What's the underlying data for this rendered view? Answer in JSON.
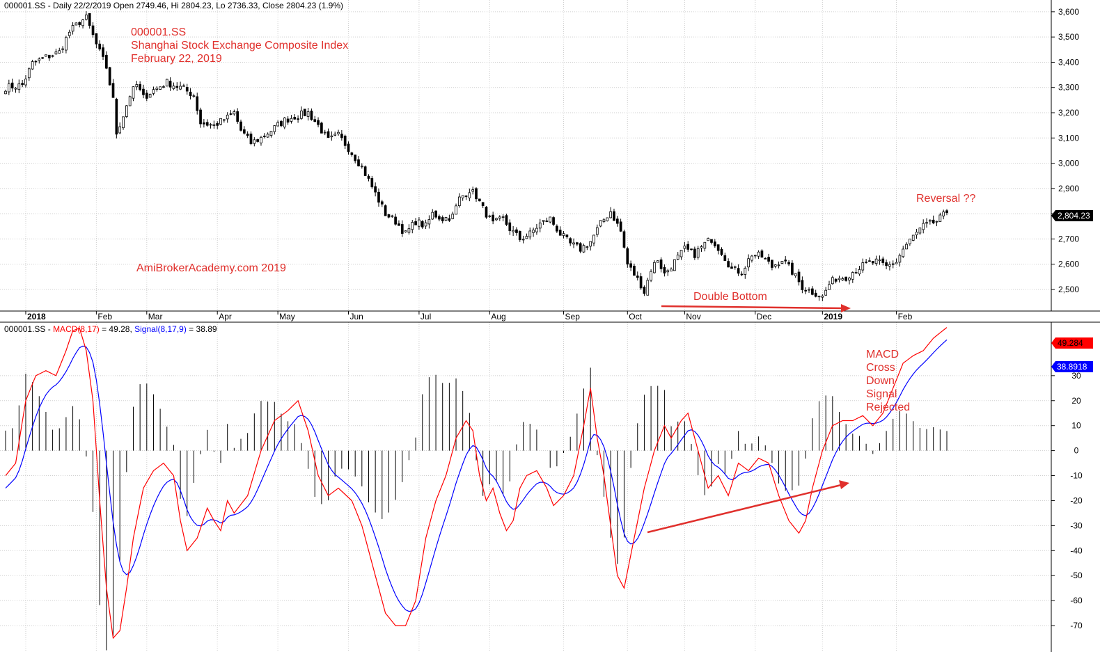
{
  "chart_data": [
    {
      "type": "candlestick",
      "header": {
        "prefix": "000001.SS - Daily 22/2/2019 Open 2749.46, Hi 2804.23, Lo 2736.33, Close 2804.23 (1.9%)"
      },
      "title_lines": [
        "000001.SS",
        "Shanghai Stock Exchange Composite Index",
        "February 22, 2019"
      ],
      "watermark": "AmiBrokerAcademy.com   2019",
      "annotations": {
        "double_bottom": "Double Bottom",
        "reversal": "Reversal ??"
      },
      "last_price_label": "2,804.23",
      "ylim": [
        2420,
        3630
      ],
      "yticks": [
        2500,
        2600,
        2700,
        2800,
        2900,
        3000,
        3100,
        3200,
        3300,
        3400,
        3500,
        3600
      ],
      "ytick_labels": [
        "2,500",
        "2,600",
        "2,700",
        "2,800",
        "2,900",
        "3,000",
        "3,100",
        "3,200",
        "3,300",
        "3,400",
        "3,500",
        "3,600"
      ],
      "months": [
        {
          "label": "2018",
          "bold": true,
          "i": 6
        },
        {
          "label": "Feb",
          "bold": false,
          "i": 27
        },
        {
          "label": "Mar",
          "bold": false,
          "i": 42
        },
        {
          "label": "Apr",
          "bold": false,
          "i": 63
        },
        {
          "label": "May",
          "bold": false,
          "i": 81
        },
        {
          "label": "Jun",
          "bold": false,
          "i": 102
        },
        {
          "label": "Jul",
          "bold": false,
          "i": 123
        },
        {
          "label": "Aug",
          "bold": false,
          "i": 144
        },
        {
          "label": "Sep",
          "bold": false,
          "i": 166
        },
        {
          "label": "Oct",
          "bold": false,
          "i": 185
        },
        {
          "label": "Nov",
          "bold": false,
          "i": 202
        },
        {
          "label": "Dec",
          "bold": false,
          "i": 223
        },
        {
          "label": "2019",
          "bold": true,
          "i": 243
        },
        {
          "label": "Feb",
          "bold": false,
          "i": 265
        }
      ],
      "n_bars": 281,
      "close_anchors": [
        [
          0,
          3300
        ],
        [
          5,
          3310
        ],
        [
          8,
          3395
        ],
        [
          12,
          3420
        ],
        [
          16,
          3440
        ],
        [
          19,
          3520
        ],
        [
          22,
          3560
        ],
        [
          24,
          3575
        ],
        [
          27,
          3470
        ],
        [
          30,
          3380
        ],
        [
          32,
          3250
        ],
        [
          33,
          3120
        ],
        [
          35,
          3190
        ],
        [
          37,
          3270
        ],
        [
          39,
          3310
        ],
        [
          41,
          3260
        ],
        [
          44,
          3290
        ],
        [
          48,
          3320
        ],
        [
          52,
          3300
        ],
        [
          56,
          3270
        ],
        [
          58,
          3160
        ],
        [
          62,
          3150
        ],
        [
          66,
          3180
        ],
        [
          68,
          3200
        ],
        [
          70,
          3130
        ],
        [
          73,
          3080
        ],
        [
          76,
          3100
        ],
        [
          80,
          3140
        ],
        [
          83,
          3170
        ],
        [
          86,
          3185
        ],
        [
          90,
          3200
        ],
        [
          93,
          3150
        ],
        [
          96,
          3090
        ],
        [
          99,
          3110
        ],
        [
          102,
          3060
        ],
        [
          106,
          2985
        ],
        [
          110,
          2880
        ],
        [
          113,
          2800
        ],
        [
          116,
          2770
        ],
        [
          119,
          2720
        ],
        [
          122,
          2770
        ],
        [
          125,
          2750
        ],
        [
          127,
          2800
        ],
        [
          130,
          2780
        ],
        [
          133,
          2790
        ],
        [
          135,
          2860
        ],
        [
          138,
          2895
        ],
        [
          140,
          2870
        ],
        [
          142,
          2820
        ],
        [
          145,
          2760
        ],
        [
          148,
          2780
        ],
        [
          150,
          2740
        ],
        [
          153,
          2700
        ],
        [
          156,
          2720
        ],
        [
          159,
          2760
        ],
        [
          162,
          2780
        ],
        [
          165,
          2720
        ],
        [
          168,
          2680
        ],
        [
          171,
          2660
        ],
        [
          174,
          2690
        ],
        [
          177,
          2760
        ],
        [
          180,
          2810
        ],
        [
          183,
          2730
        ],
        [
          185,
          2600
        ],
        [
          187,
          2560
        ],
        [
          189,
          2520
        ],
        [
          190,
          2490
        ],
        [
          192,
          2580
        ],
        [
          194,
          2620
        ],
        [
          196,
          2560
        ],
        [
          199,
          2610
        ],
        [
          202,
          2660
        ],
        [
          205,
          2640
        ],
        [
          208,
          2680
        ],
        [
          210,
          2700
        ],
        [
          213,
          2650
        ],
        [
          216,
          2580
        ],
        [
          219,
          2570
        ],
        [
          222,
          2640
        ],
        [
          225,
          2630
        ],
        [
          228,
          2590
        ],
        [
          231,
          2620
        ],
        [
          234,
          2570
        ],
        [
          237,
          2510
        ],
        [
          240,
          2490
        ],
        [
          242,
          2480
        ],
        [
          243,
          2470
        ],
        [
          245,
          2520
        ],
        [
          247,
          2545
        ],
        [
          250,
          2550
        ],
        [
          253,
          2580
        ],
        [
          256,
          2600
        ],
        [
          259,
          2610
        ],
        [
          262,
          2590
        ],
        [
          265,
          2610
        ],
        [
          267,
          2660
        ],
        [
          270,
          2710
        ],
        [
          273,
          2750
        ],
        [
          277,
          2770
        ],
        [
          280,
          2804
        ]
      ],
      "candle_seed": 7
    },
    {
      "type": "line+bar",
      "header": {
        "prefix": "000001.SS - ",
        "macd_label": "MACD(8,17)",
        "macd_value_text": " = 49.28, ",
        "signal_label": "Signal(8,17,9)",
        "signal_value_text": " = 38.89"
      },
      "series": [
        {
          "name": "MACD(8,17)",
          "color": "#ff0000",
          "last_label": "49.284"
        },
        {
          "name": "Signal(8,17,9)",
          "color": "#0000ff",
          "last_label": "38.8918"
        },
        {
          "name": "histogram",
          "color": "#000000"
        }
      ],
      "annotation_lines": [
        "MACD",
        "Cross",
        "Down",
        "Signal",
        "Rejected"
      ],
      "ylim": [
        -80,
        50
      ],
      "yticks": [
        -70,
        -60,
        -50,
        -40,
        -30,
        -20,
        -10,
        0,
        10,
        20,
        30
      ],
      "ytick_labels": [
        "-70",
        "-60",
        "-50",
        "-40",
        "-30",
        "-20",
        "-10",
        "0",
        "10",
        "20",
        "30"
      ],
      "macd_anchors": [
        [
          0,
          -10
        ],
        [
          3,
          -5
        ],
        [
          6,
          20
        ],
        [
          9,
          30
        ],
        [
          12,
          32
        ],
        [
          15,
          30
        ],
        [
          18,
          40
        ],
        [
          20,
          48
        ],
        [
          22,
          49
        ],
        [
          24,
          40
        ],
        [
          26,
          20
        ],
        [
          28,
          -20
        ],
        [
          30,
          -55
        ],
        [
          32,
          -75
        ],
        [
          34,
          -72
        ],
        [
          36,
          -55
        ],
        [
          38,
          -35
        ],
        [
          41,
          -15
        ],
        [
          44,
          -8
        ],
        [
          47,
          -5
        ],
        [
          50,
          -10
        ],
        [
          52,
          -28
        ],
        [
          54,
          -40
        ],
        [
          57,
          -35
        ],
        [
          60,
          -23
        ],
        [
          62,
          -28
        ],
        [
          64,
          -32
        ],
        [
          66,
          -20
        ],
        [
          68,
          -25
        ],
        [
          72,
          -18
        ],
        [
          76,
          0
        ],
        [
          80,
          12
        ],
        [
          84,
          16
        ],
        [
          87,
          20
        ],
        [
          90,
          8
        ],
        [
          93,
          -10
        ],
        [
          96,
          -18
        ],
        [
          99,
          -15
        ],
        [
          103,
          -20
        ],
        [
          106,
          -30
        ],
        [
          110,
          -50
        ],
        [
          113,
          -65
        ],
        [
          116,
          -70
        ],
        [
          119,
          -70
        ],
        [
          122,
          -60
        ],
        [
          125,
          -35
        ],
        [
          128,
          -20
        ],
        [
          131,
          -10
        ],
        [
          134,
          5
        ],
        [
          137,
          12
        ],
        [
          139,
          8
        ],
        [
          141,
          -10
        ],
        [
          143,
          -20
        ],
        [
          145,
          -15
        ],
        [
          147,
          -25
        ],
        [
          149,
          -32
        ],
        [
          151,
          -28
        ],
        [
          153,
          -15
        ],
        [
          155,
          -10
        ],
        [
          158,
          -8
        ],
        [
          161,
          -15
        ],
        [
          163,
          -22
        ],
        [
          166,
          -18
        ],
        [
          169,
          -10
        ],
        [
          172,
          10
        ],
        [
          174,
          25
        ],
        [
          176,
          5
        ],
        [
          178,
          -10
        ],
        [
          180,
          -30
        ],
        [
          182,
          -50
        ],
        [
          184,
          -55
        ],
        [
          187,
          -35
        ],
        [
          190,
          -15
        ],
        [
          193,
          0
        ],
        [
          196,
          10
        ],
        [
          198,
          5
        ],
        [
          201,
          12
        ],
        [
          203,
          15
        ],
        [
          205,
          5
        ],
        [
          207,
          -5
        ],
        [
          209,
          -15
        ],
        [
          212,
          -10
        ],
        [
          215,
          -18
        ],
        [
          218,
          -5
        ],
        [
          221,
          -8
        ],
        [
          224,
          -3
        ],
        [
          227,
          -5
        ],
        [
          230,
          -18
        ],
        [
          233,
          -28
        ],
        [
          236,
          -33
        ],
        [
          238,
          -28
        ],
        [
          240,
          -15
        ],
        [
          243,
          0
        ],
        [
          246,
          10
        ],
        [
          249,
          12
        ],
        [
          252,
          12
        ],
        [
          255,
          14
        ],
        [
          258,
          10
        ],
        [
          261,
          15
        ],
        [
          264,
          25
        ],
        [
          267,
          35
        ],
        [
          270,
          38
        ],
        [
          273,
          40
        ],
        [
          276,
          45
        ],
        [
          280,
          49.28
        ]
      ],
      "signal_seed_start": -15
    }
  ]
}
